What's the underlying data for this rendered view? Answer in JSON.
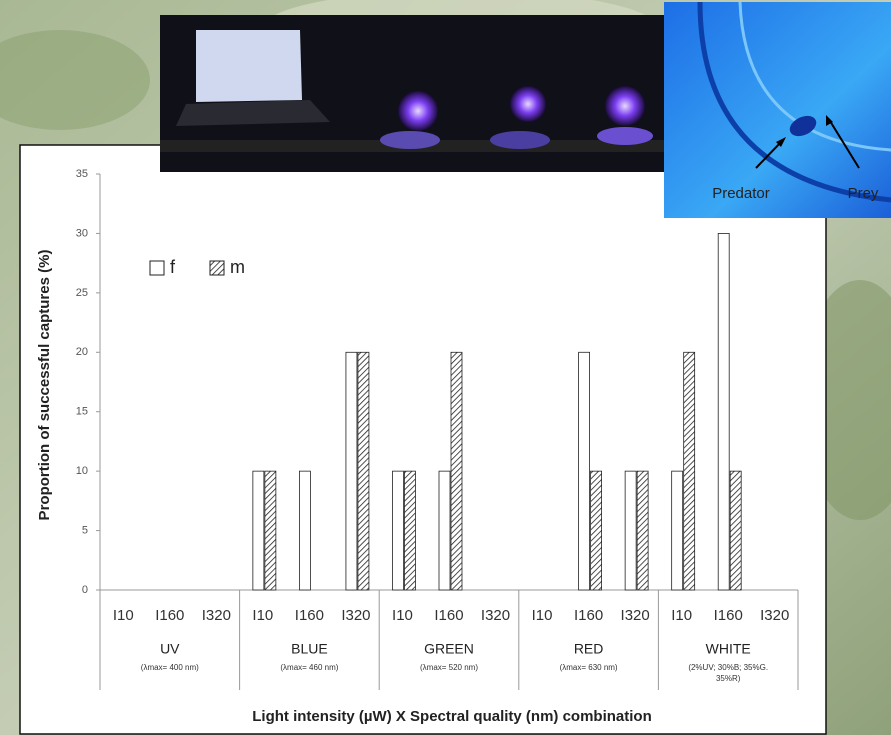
{
  "chart_data": {
    "type": "bar",
    "y_label": "Proportion of successful captures (%)",
    "x_label": "Light intensity (µW) X Spectral quality (nm) combination",
    "categories": [
      "I10",
      "I160",
      "I320",
      "I10",
      "I160",
      "I320",
      "I10",
      "I160",
      "I320",
      "I10",
      "I160",
      "I320",
      "I10",
      "I160",
      "I320"
    ],
    "groups": [
      {
        "name": "UV",
        "sublabel": [
          "(λmax= 400 nm)"
        ]
      },
      {
        "name": "BLUE",
        "sublabel": [
          "(λmax= 460 nm)"
        ]
      },
      {
        "name": "GREEN",
        "sublabel": [
          "(λmax= 520 nm)"
        ]
      },
      {
        "name": "RED",
        "sublabel": [
          "(λmax= 630 nm)"
        ]
      },
      {
        "name": "WHITE",
        "sublabel": [
          "(2%UV; 30%B; 35%G.",
          "35%R)"
        ]
      }
    ],
    "series": [
      {
        "name": "f",
        "color": "#ffffff",
        "values": [
          0,
          0,
          0,
          10,
          10,
          20,
          10,
          10,
          0,
          0,
          20,
          10,
          10,
          30,
          0
        ]
      },
      {
        "name": "m",
        "color": "hatch",
        "values": [
          0,
          0,
          0,
          10,
          0,
          20,
          10,
          20,
          0,
          0,
          10,
          10,
          20,
          10,
          0
        ]
      }
    ],
    "ylim": [
      0,
      35
    ],
    "yticks": [
      0,
      5,
      10,
      15,
      20,
      25,
      30,
      35
    ],
    "grid": false,
    "legend": "top-left",
    "annotations": [
      "Predator",
      "Prey"
    ]
  }
}
